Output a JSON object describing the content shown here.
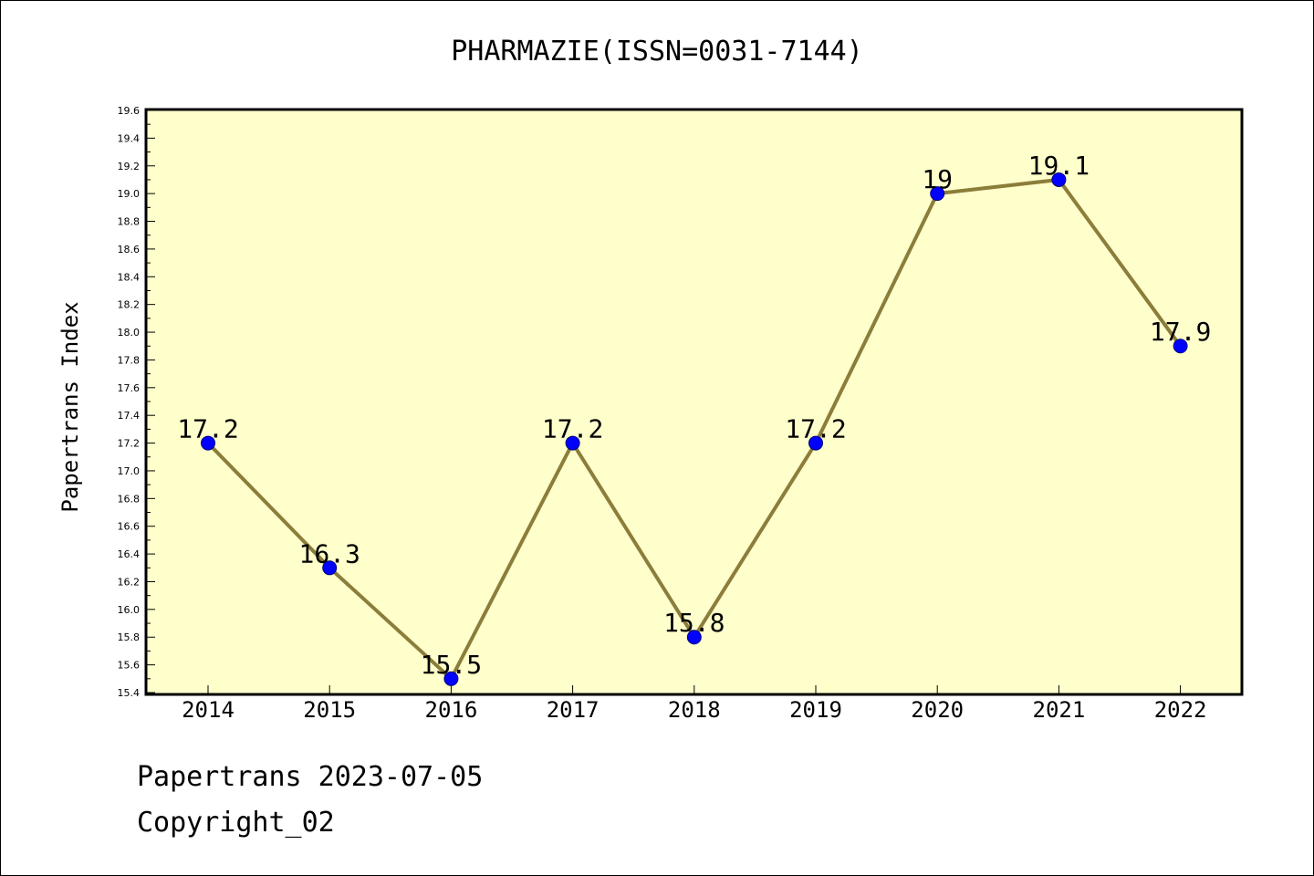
{
  "chart_data": {
    "type": "line",
    "title": "PHARMAZIE(ISSN=0031-7144)",
    "xlabel": "",
    "ylabel": "Papertrans Index",
    "categories": [
      "2014",
      "2015",
      "2016",
      "2017",
      "2018",
      "2019",
      "2020",
      "2021",
      "2022"
    ],
    "series": [
      {
        "values": [
          17.2,
          16.3,
          15.5,
          17.2,
          15.8,
          17.2,
          19.0,
          19.1,
          17.9
        ],
        "data_labels": [
          "17.2",
          "16.3",
          "15.5",
          "17.2",
          "15.8",
          "17.2",
          "19",
          "19.1",
          "17.9"
        ]
      }
    ],
    "ylim": [
      15.4,
      19.6
    ],
    "y_tick_step": 0.2,
    "y_minor_step": 0.1,
    "grid": false,
    "legend": "none",
    "colors": {
      "plot_background": "#ffffcc",
      "line": "#8b7d3a",
      "marker": "#0000ff",
      "marker_edge": "#000080"
    }
  },
  "footer": {
    "line1": "Papertrans 2023-07-05",
    "line2": "Copyright_02"
  }
}
